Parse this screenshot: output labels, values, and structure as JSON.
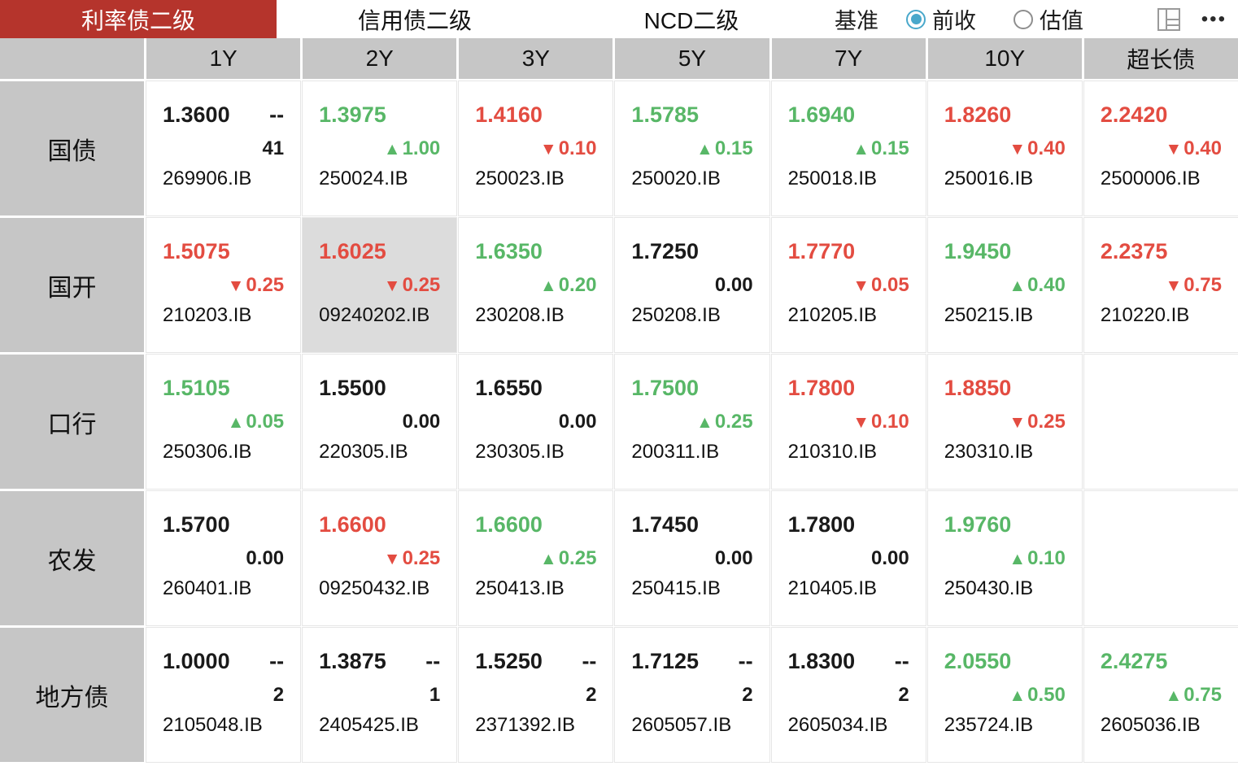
{
  "colors": {
    "red": "#e34c41",
    "green": "#58b767",
    "black": "#1a1a1a",
    "tab_red": "#b5342c",
    "cell_gray": "#c6c6c6",
    "selected_gray": "#dcdcdc",
    "radio_blue": "#49a8cb"
  },
  "icons": {
    "more": "•••",
    "up_arrow": "▲",
    "down_arrow": "▼",
    "layout": "layout-panes"
  },
  "tabs": [
    {
      "name": "rate-bond-secondary",
      "label": "利率债二级",
      "active": true
    },
    {
      "name": "credit-bond-secondary",
      "label": "信用债二级",
      "active": false
    },
    {
      "name": "ncd-secondary",
      "label": "NCD二级",
      "active": false
    }
  ],
  "benchmark": {
    "label": "基准",
    "options": [
      {
        "name": "prev-close",
        "label": "前收",
        "selected": true
      },
      {
        "name": "valuation",
        "label": "估值",
        "selected": false
      }
    ]
  },
  "columns": [
    "1Y",
    "2Y",
    "3Y",
    "5Y",
    "7Y",
    "10Y",
    "超长债"
  ],
  "rows": [
    {
      "name": "treasury",
      "label": "国债",
      "cells": [
        {
          "value": "1.3600",
          "color": "black",
          "dash": "--",
          "count": "41",
          "code": "269906.IB"
        },
        {
          "value": "1.3975",
          "color": "green",
          "dir": "up",
          "change": "1.00",
          "code": "250024.IB"
        },
        {
          "value": "1.4160",
          "color": "red",
          "dir": "down",
          "change": "0.10",
          "code": "250023.IB"
        },
        {
          "value": "1.5785",
          "color": "green",
          "dir": "up",
          "change": "0.15",
          "code": "250020.IB"
        },
        {
          "value": "1.6940",
          "color": "green",
          "dir": "up",
          "change": "0.15",
          "code": "250018.IB"
        },
        {
          "value": "1.8260",
          "color": "red",
          "dir": "down",
          "change": "0.40",
          "code": "250016.IB"
        },
        {
          "value": "2.2420",
          "color": "red",
          "dir": "down",
          "change": "0.40",
          "code": "2500006.IB"
        }
      ]
    },
    {
      "name": "cdb",
      "label": "国开",
      "cells": [
        {
          "value": "1.5075",
          "color": "red",
          "dir": "down",
          "change": "0.25",
          "code": "210203.IB"
        },
        {
          "value": "1.6025",
          "color": "red",
          "dir": "down",
          "change": "0.25",
          "code": "09240202.IB",
          "selected": true
        },
        {
          "value": "1.6350",
          "color": "green",
          "dir": "up",
          "change": "0.20",
          "code": "230208.IB"
        },
        {
          "value": "1.7250",
          "color": "black",
          "zero": "0.00",
          "code": "250208.IB"
        },
        {
          "value": "1.7770",
          "color": "red",
          "dir": "down",
          "change": "0.05",
          "code": "210205.IB"
        },
        {
          "value": "1.9450",
          "color": "green",
          "dir": "up",
          "change": "0.40",
          "code": "250215.IB"
        },
        {
          "value": "2.2375",
          "color": "red",
          "dir": "down",
          "change": "0.75",
          "code": "210220.IB"
        }
      ]
    },
    {
      "name": "exim",
      "label": "口行",
      "cells": [
        {
          "value": "1.5105",
          "color": "green",
          "dir": "up",
          "change": "0.05",
          "code": "250306.IB"
        },
        {
          "value": "1.5500",
          "color": "black",
          "zero": "0.00",
          "code": "220305.IB"
        },
        {
          "value": "1.6550",
          "color": "black",
          "zero": "0.00",
          "code": "230305.IB"
        },
        {
          "value": "1.7500",
          "color": "green",
          "dir": "up",
          "change": "0.25",
          "code": "200311.IB"
        },
        {
          "value": "1.7800",
          "color": "red",
          "dir": "down",
          "change": "0.10",
          "code": "210310.IB"
        },
        {
          "value": "1.8850",
          "color": "red",
          "dir": "down",
          "change": "0.25",
          "code": "230310.IB"
        },
        {}
      ]
    },
    {
      "name": "adbc",
      "label": "农发",
      "cells": [
        {
          "value": "1.5700",
          "color": "black",
          "zero": "0.00",
          "code": "260401.IB"
        },
        {
          "value": "1.6600",
          "color": "red",
          "dir": "down",
          "change": "0.25",
          "code": "09250432.IB"
        },
        {
          "value": "1.6600",
          "color": "green",
          "dir": "up",
          "change": "0.25",
          "code": "250413.IB"
        },
        {
          "value": "1.7450",
          "color": "black",
          "zero": "0.00",
          "code": "250415.IB"
        },
        {
          "value": "1.7800",
          "color": "black",
          "zero": "0.00",
          "code": "210405.IB"
        },
        {
          "value": "1.9760",
          "color": "green",
          "dir": "up",
          "change": "0.10",
          "code": "250430.IB"
        },
        {}
      ]
    },
    {
      "name": "local-gov",
      "label": "地方债",
      "cells": [
        {
          "value": "1.0000",
          "color": "black",
          "dash": "--",
          "count": "2",
          "code": "2105048.IB"
        },
        {
          "value": "1.3875",
          "color": "black",
          "dash": "--",
          "count": "1",
          "code": "2405425.IB"
        },
        {
          "value": "1.5250",
          "color": "black",
          "dash": "--",
          "count": "2",
          "code": "2371392.IB"
        },
        {
          "value": "1.7125",
          "color": "black",
          "dash": "--",
          "count": "2",
          "code": "2605057.IB"
        },
        {
          "value": "1.8300",
          "color": "black",
          "dash": "--",
          "count": "2",
          "code": "2605034.IB"
        },
        {
          "value": "2.0550",
          "color": "green",
          "dir": "up",
          "change": "0.50",
          "code": "235724.IB"
        },
        {
          "value": "2.4275",
          "color": "green",
          "dir": "up",
          "change": "0.75",
          "code": "2605036.IB"
        }
      ]
    }
  ]
}
